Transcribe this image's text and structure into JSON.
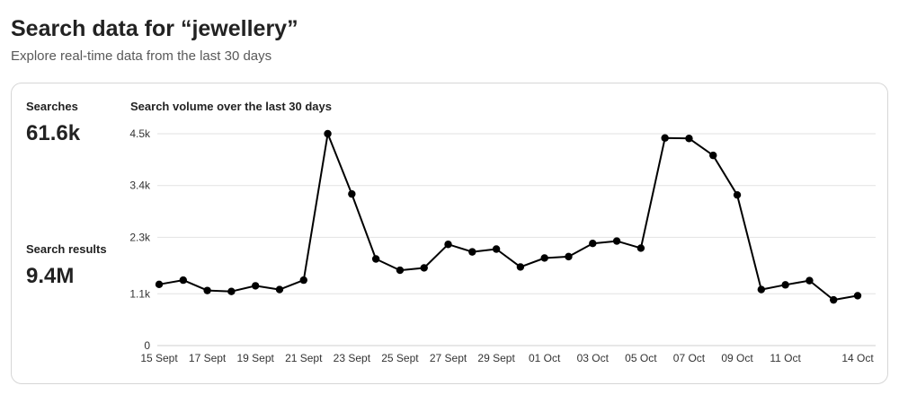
{
  "header": {
    "title": "Search data for “jewellery”",
    "subtitle": "Explore real-time data from the last 30 days"
  },
  "stats": {
    "searches_label": "Searches",
    "searches_value": "61.6k",
    "results_label": "Search results",
    "results_value": "9.4M"
  },
  "chart_data": {
    "type": "line",
    "title": "Search volume over the last 30 days",
    "xlabel": "",
    "ylabel": "",
    "ylim": [
      0,
      4500
    ],
    "yticks": [
      0,
      1100,
      2300,
      3400,
      4500
    ],
    "ytick_labels": [
      "0",
      "1.1k",
      "2.3k",
      "3.4k",
      "4.5k"
    ],
    "grid": true,
    "x": [
      "15 Sept",
      "16 Sept",
      "17 Sept",
      "18 Sept",
      "19 Sept",
      "20 Sept",
      "21 Sept",
      "22 Sept",
      "23 Sept",
      "24 Sept",
      "25 Sept",
      "26 Sept",
      "27 Sept",
      "28 Sept",
      "29 Sept",
      "30 Sept",
      "01 Oct",
      "02 Oct",
      "03 Oct",
      "04 Oct",
      "05 Oct",
      "06 Oct",
      "07 Oct",
      "08 Oct",
      "09 Oct",
      "10 Oct",
      "11 Oct",
      "12 Oct",
      "13 Oct",
      "14 Oct"
    ],
    "xtick_labels": [
      {
        "index": 0,
        "label": "15 Sept"
      },
      {
        "index": 2,
        "label": "17 Sept"
      },
      {
        "index": 4,
        "label": "19 Sept"
      },
      {
        "index": 6,
        "label": "21 Sept"
      },
      {
        "index": 8,
        "label": "23 Sept"
      },
      {
        "index": 10,
        "label": "25 Sept"
      },
      {
        "index": 12,
        "label": "27 Sept"
      },
      {
        "index": 14,
        "label": "29 Sept"
      },
      {
        "index": 16,
        "label": "01 Oct"
      },
      {
        "index": 18,
        "label": "03 Oct"
      },
      {
        "index": 20,
        "label": "05 Oct"
      },
      {
        "index": 22,
        "label": "07 Oct"
      },
      {
        "index": 24,
        "label": "09 Oct"
      },
      {
        "index": 26,
        "label": "11 Oct"
      },
      {
        "index": 29,
        "label": "14 Oct"
      }
    ],
    "series": [
      {
        "values": [
          1300,
          1390,
          1170,
          1150,
          1270,
          1190,
          1390,
          4500,
          3220,
          1840,
          1600,
          1650,
          2150,
          1990,
          2050,
          1670,
          1860,
          1890,
          2170,
          2220,
          2070,
          4410,
          4400,
          4040,
          3200,
          1190,
          1290,
          1380,
          970,
          1060
        ],
        "color": "#000000"
      }
    ]
  }
}
